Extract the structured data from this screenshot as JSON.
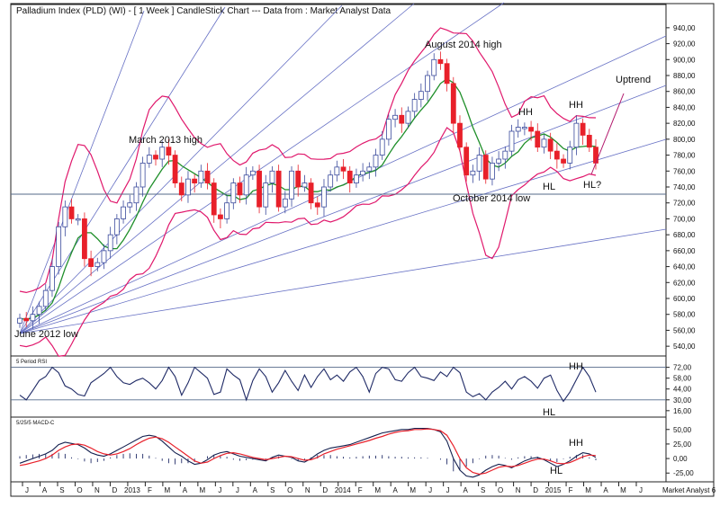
{
  "chart_data": [
    {
      "type": "candlestick",
      "title": "Palladium Index (PLD) (WI) -  [ 1 Week ] CandleStick Chart --- Data from : Market Analyst Data",
      "ylim": [
        530,
        950
      ],
      "y_ticks": [
        "940,00",
        "920,00",
        "900,00",
        "880,00",
        "860,00",
        "840,00",
        "820,00",
        "800,00",
        "780,00",
        "760,00",
        "740,00",
        "720,00",
        "700,00",
        "680,00",
        "660,00",
        "640,00",
        "620,00",
        "600,00",
        "580,00",
        "560,00",
        "540,00"
      ],
      "x_labels": [
        "J",
        "A",
        "S",
        "O",
        "N",
        "D",
        "2013",
        "F",
        "M",
        "A",
        "M",
        "J",
        "J",
        "A",
        "S",
        "O",
        "N",
        "D",
        "2014",
        "F",
        "M",
        "A",
        "M",
        "J",
        "J",
        "A",
        "S",
        "O",
        "N",
        "D",
        "2015",
        "F",
        "M",
        "A",
        "M",
        "J"
      ],
      "footer_label": "Market Analyst 6",
      "horizontal_line": 731,
      "annotations": [
        "March 2013 high",
        "August 2014 high",
        "June 2012 low",
        "October 2014 low",
        "HH",
        "HH",
        "HL",
        "HL?",
        "Uptrend"
      ],
      "close": [
        575,
        572,
        580,
        590,
        610,
        640,
        690,
        715,
        700,
        700,
        650,
        640,
        645,
        660,
        680,
        700,
        715,
        720,
        740,
        770,
        780,
        775,
        790,
        780,
        745,
        730,
        750,
        745,
        760,
        745,
        705,
        700,
        720,
        745,
        730,
        755,
        760,
        715,
        745,
        760,
        715,
        725,
        760,
        740,
        745,
        720,
        715,
        740,
        755,
        765,
        760,
        745,
        755,
        760,
        765,
        780,
        800,
        825,
        830,
        820,
        835,
        850,
        860,
        880,
        900,
        895,
        870,
        820,
        790,
        755,
        760,
        780,
        750,
        770,
        775,
        785,
        810,
        815,
        815,
        810,
        790,
        800,
        785,
        775,
        770,
        790,
        820,
        805,
        790,
        770
      ],
      "colors": {
        "up": "#3a4a9c",
        "down": "#e8202a",
        "bollinger": "#e0186c",
        "ma": "#1f8f2a",
        "fan": "#6670c4",
        "hline": "#556a8a"
      }
    },
    {
      "type": "line",
      "title": "5 Period RSI",
      "ylim": [
        10,
        82
      ],
      "y_ticks": [
        "72,00",
        "58,00",
        "44,00",
        "30,00",
        "16,00"
      ],
      "levels": [
        72,
        30
      ],
      "annotations": [
        "HH",
        "HL"
      ],
      "values": [
        36,
        30,
        42,
        55,
        60,
        72,
        65,
        48,
        44,
        37,
        35,
        52,
        58,
        64,
        72,
        60,
        52,
        50,
        55,
        58,
        52,
        44,
        55,
        72,
        60,
        36,
        52,
        72,
        65,
        58,
        37,
        40,
        70,
        62,
        56,
        30,
        55,
        70,
        60,
        40,
        52,
        68,
        54,
        42,
        62,
        46,
        60,
        70,
        56,
        62,
        54,
        66,
        72,
        60,
        40,
        64,
        72,
        70,
        56,
        54,
        65,
        72,
        60,
        58,
        55,
        66,
        60,
        72,
        65,
        40,
        34,
        38,
        30,
        40,
        46,
        54,
        44,
        56,
        60,
        54,
        45,
        58,
        62,
        42,
        28,
        40,
        56,
        72,
        60,
        40
      ]
    },
    {
      "type": "line",
      "title": "5/25/5 MACD-C",
      "ylim": [
        -37,
        62
      ],
      "y_ticks": [
        "50,00",
        "25,00",
        "0,00",
        "-25,00"
      ],
      "annotations": [
        "HH",
        "HL"
      ],
      "series": [
        {
          "values": [
            -8,
            -4,
            0,
            4,
            8,
            14,
            24,
            28,
            26,
            24,
            18,
            10,
            6,
            4,
            8,
            14,
            20,
            26,
            32,
            38,
            40,
            38,
            30,
            20,
            10,
            4,
            -4,
            -10,
            -8,
            -2,
            6,
            10,
            12,
            8,
            4,
            2,
            0,
            -2,
            -4,
            2,
            6,
            4,
            2,
            -4,
            -6,
            0,
            8,
            14,
            18,
            20,
            22,
            24,
            28,
            32,
            36,
            40,
            44,
            46,
            48,
            50,
            50,
            52,
            52,
            52,
            50,
            46,
            30,
            0,
            -20,
            -30,
            -32,
            -28,
            -20,
            -14,
            -10,
            -12,
            -16,
            -10,
            -4,
            0,
            2,
            -2,
            -8,
            -14,
            -10,
            -4,
            4,
            10,
            8,
            2
          ]
        },
        {
          "values": [
            -12,
            -10,
            -7,
            -4,
            0,
            6,
            14,
            20,
            24,
            25,
            23,
            18,
            12,
            8,
            6,
            8,
            12,
            17,
            24,
            30,
            35,
            37,
            34,
            28,
            20,
            12,
            4,
            -4,
            -8,
            -6,
            0,
            5,
            9,
            10,
            8,
            5,
            2,
            0,
            -2,
            0,
            2,
            4,
            3,
            0,
            -3,
            -2,
            2,
            8,
            12,
            16,
            19,
            22,
            25,
            28,
            31,
            35,
            38,
            42,
            45,
            47,
            48,
            50,
            50,
            51,
            50,
            48,
            40,
            22,
            0,
            -16,
            -24,
            -27,
            -25,
            -20,
            -15,
            -13,
            -14,
            -12,
            -8,
            -4,
            -1,
            -1,
            -4,
            -8,
            -9,
            -7,
            -2,
            3,
            6,
            5
          ]
        },
        {
          "values": [
            4,
            6,
            7,
            8,
            8,
            8,
            10,
            8,
            2,
            -1,
            -5,
            -8,
            -6,
            -4,
            2,
            6,
            8,
            9,
            8,
            8,
            5,
            1,
            -4,
            -8,
            -10,
            -8,
            -8,
            -6,
            0,
            4,
            6,
            5,
            3,
            -2,
            -4,
            -3,
            -2,
            -2,
            -2,
            2,
            4,
            0,
            -1,
            -4,
            -3,
            2,
            6,
            6,
            6,
            4,
            3,
            2,
            3,
            4,
            5,
            5,
            6,
            4,
            3,
            3,
            2,
            2,
            2,
            1,
            0,
            -2,
            -10,
            -22,
            -20,
            -14,
            -8,
            -1,
            5,
            6,
            5,
            1,
            -2,
            2,
            4,
            4,
            3,
            -1,
            -4,
            -6,
            -1,
            3,
            6,
            7,
            2,
            -3
          ]
        }
      ]
    }
  ]
}
